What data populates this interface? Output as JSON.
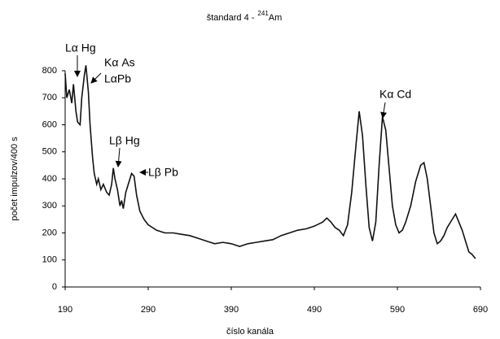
{
  "chart_data": {
    "type": "line",
    "title": {
      "prefix": "štandard 4 -",
      "sup": "241",
      "suffix": "Am"
    },
    "x_label": "číslo kanála",
    "y_label": "počet impulzov/400 s",
    "xlim": [
      190,
      690
    ],
    "xticks": [
      190,
      290,
      390,
      490,
      590,
      690
    ],
    "ylim": [
      0,
      800
    ],
    "yticks": [
      0,
      100,
      200,
      300,
      400,
      500,
      600,
      700,
      800
    ],
    "grid": false,
    "annotations": [
      "Lα Hg",
      "Kα As",
      "LαPb",
      "Lβ Hg",
      "Lβ Pb",
      "Kα Cd"
    ],
    "series": [
      {
        "color": "#111111",
        "x": [
          190,
          192,
          195,
          198,
          200,
          203,
          205,
          208,
          210,
          213,
          215,
          218,
          220,
          223,
          225,
          228,
          230,
          233,
          236,
          240,
          243,
          246,
          248,
          250,
          253,
          256,
          258,
          260,
          263,
          266,
          270,
          273,
          276,
          280,
          285,
          290,
          300,
          310,
          320,
          330,
          340,
          350,
          360,
          370,
          380,
          390,
          400,
          410,
          420,
          430,
          440,
          450,
          460,
          470,
          480,
          490,
          500,
          505,
          510,
          515,
          520,
          525,
          530,
          535,
          540,
          544,
          548,
          552,
          556,
          560,
          564,
          568,
          572,
          576,
          580,
          584,
          588,
          592,
          596,
          600,
          606,
          612,
          618,
          622,
          626,
          630,
          634,
          638,
          642,
          646,
          650,
          656,
          660,
          664,
          668,
          672,
          676,
          680,
          684
        ],
        "values": [
          790,
          700,
          730,
          680,
          750,
          650,
          610,
          600,
          700,
          780,
          820,
          720,
          600,
          480,
          420,
          380,
          400,
          360,
          380,
          350,
          340,
          380,
          440,
          400,
          360,
          300,
          320,
          290,
          350,
          380,
          420,
          410,
          340,
          280,
          250,
          230,
          210,
          200,
          200,
          195,
          190,
          180,
          170,
          160,
          165,
          160,
          150,
          160,
          165,
          170,
          175,
          190,
          200,
          210,
          215,
          225,
          240,
          255,
          240,
          220,
          210,
          190,
          230,
          350,
          520,
          650,
          560,
          380,
          220,
          170,
          240,
          450,
          630,
          580,
          440,
          300,
          230,
          200,
          210,
          240,
          300,
          390,
          450,
          460,
          400,
          300,
          200,
          160,
          170,
          190,
          220,
          250,
          270,
          240,
          210,
          170,
          130,
          120,
          105
        ]
      }
    ]
  }
}
